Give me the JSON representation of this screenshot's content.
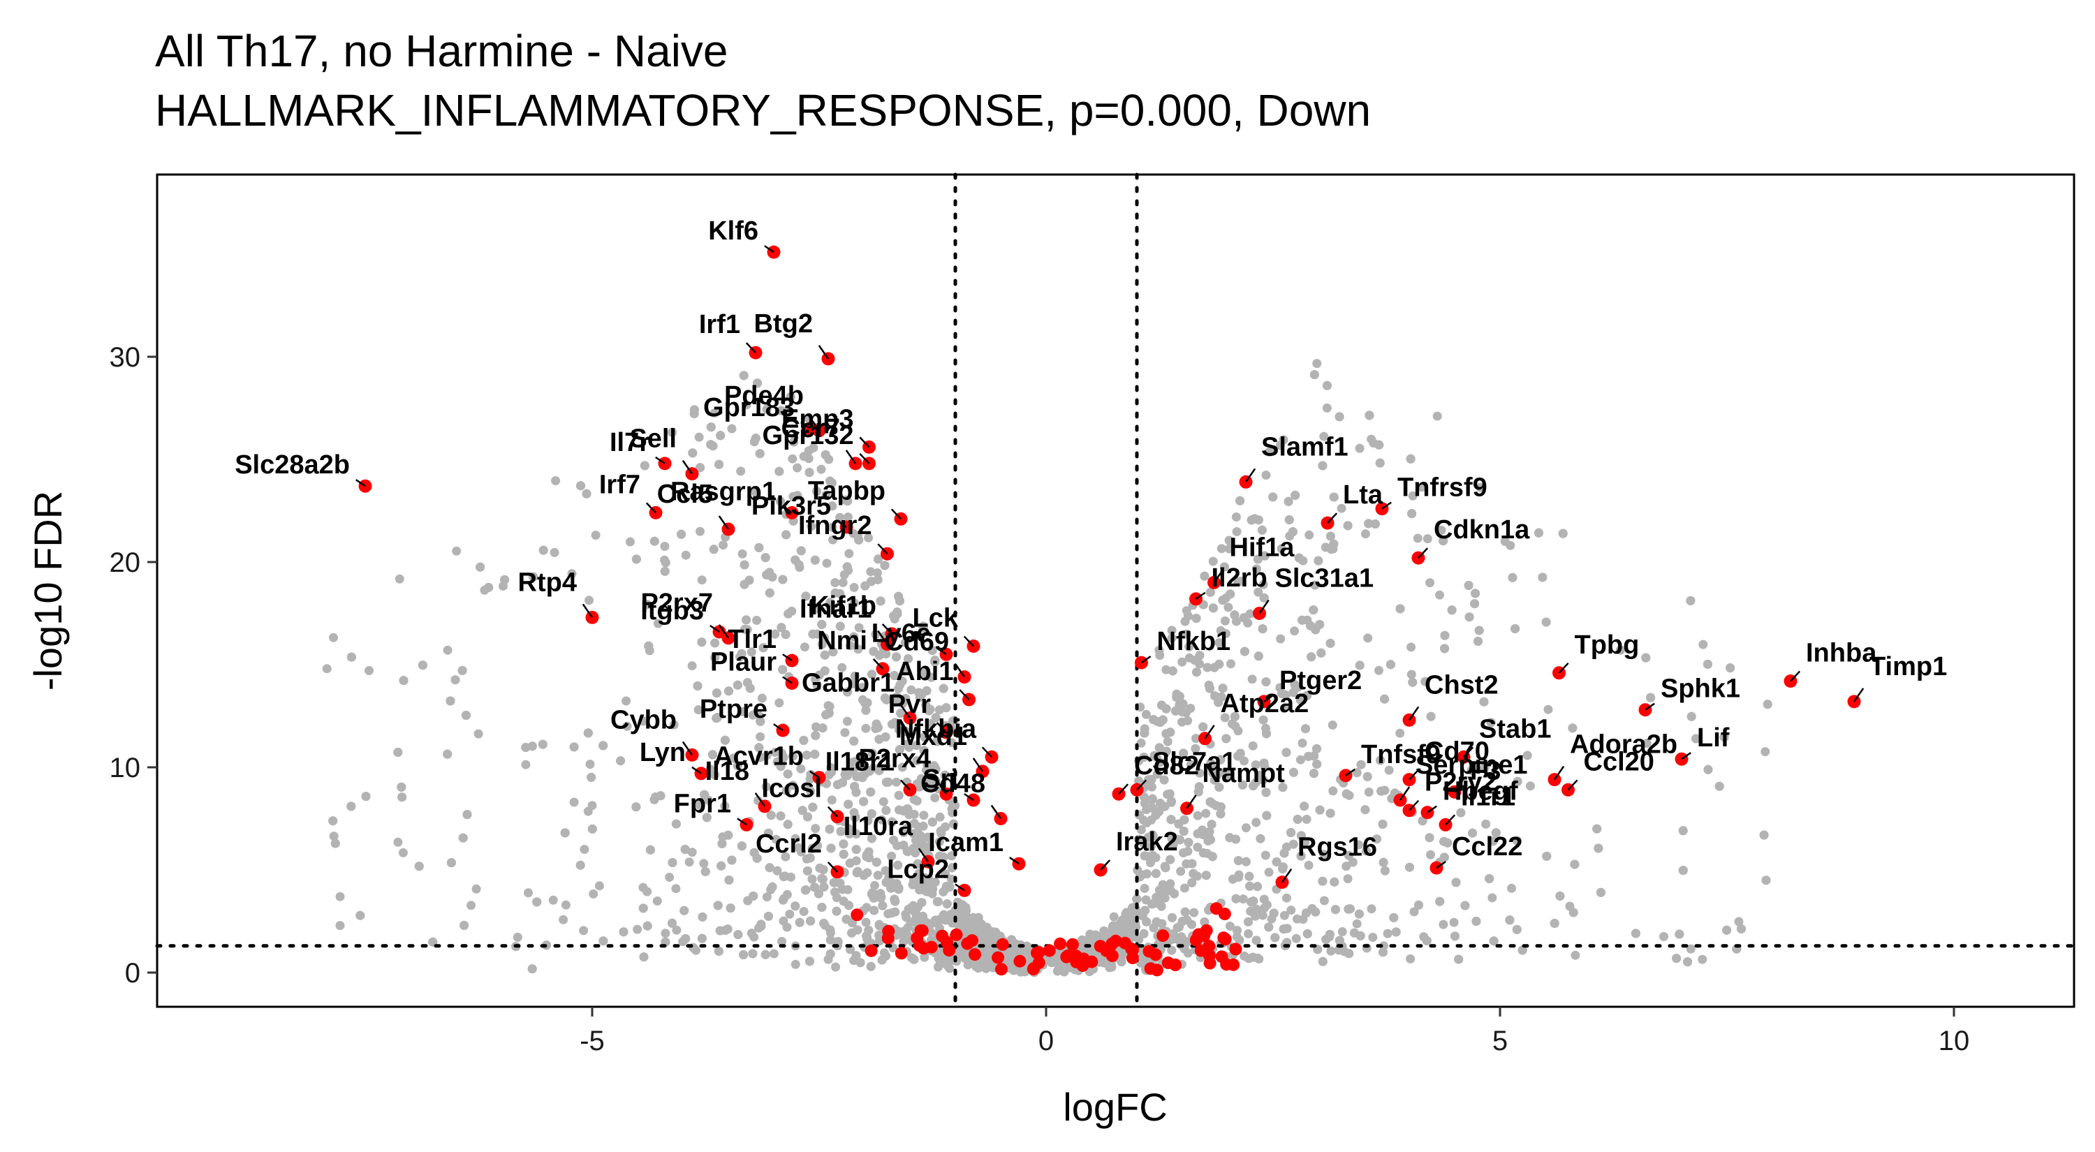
{
  "chart_data": {
    "type": "scatter",
    "title": "All Th17, no Harmine - Naive",
    "subtitle": "HALLMARK_INFLAMMATORY_RESPONSE, p=0.000, Down",
    "xlabel": "logFC",
    "ylabel": "-log10 FDR",
    "xlim": [
      -9.8,
      11.4
    ],
    "ylim": [
      -1.8,
      39.2
    ],
    "x_ticks": [
      -5,
      0,
      5,
      10
    ],
    "y_ticks": [
      0,
      10,
      20,
      30
    ],
    "x_tick_labels": [
      "-5",
      "0",
      "5",
      "10"
    ],
    "y_tick_labels": [
      "0",
      "10",
      "20",
      "30"
    ],
    "thresholds": {
      "logfc": [
        -1,
        1
      ],
      "neg_log10_fdr": 1.3
    },
    "grid": false,
    "colors": {
      "background_points": "#b3b3b3",
      "highlight_points": "#ff0000",
      "threshold_lines": "#000000"
    },
    "highlighted_genes": [
      {
        "gene": "Klf6",
        "x": -3.0,
        "y": 35.1
      },
      {
        "gene": "Irf1",
        "x": -3.2,
        "y": 30.2
      },
      {
        "gene": "Btg2",
        "x": -2.4,
        "y": 29.9
      },
      {
        "gene": "Gpr183",
        "x": -2.6,
        "y": 26.5
      },
      {
        "gene": "Emp3",
        "x": -1.95,
        "y": 25.6
      },
      {
        "gene": "Pde4b",
        "x": -2.5,
        "y": 26.4
      },
      {
        "gene": "Il7r",
        "x": -4.2,
        "y": 24.8
      },
      {
        "gene": "Gpr132",
        "x": -1.95,
        "y": 24.8
      },
      {
        "gene": "Ccr7",
        "x": -2.1,
        "y": 24.8
      },
      {
        "gene": "Slc28a2b",
        "x": -7.5,
        "y": 23.7
      },
      {
        "gene": "Irf7",
        "x": -4.3,
        "y": 22.4
      },
      {
        "gene": "Sell",
        "x": -3.9,
        "y": 24.3
      },
      {
        "gene": "Pik3r5",
        "x": -2.2,
        "y": 21.7
      },
      {
        "gene": "Tapbp",
        "x": -1.6,
        "y": 22.1
      },
      {
        "gene": "Ccl5",
        "x": -3.5,
        "y": 21.6
      },
      {
        "gene": "Rasgrp1",
        "x": -2.8,
        "y": 22.4
      },
      {
        "gene": "Ifngr2",
        "x": -1.75,
        "y": 20.4
      },
      {
        "gene": "Rtp4",
        "x": -5.0,
        "y": 17.3
      },
      {
        "gene": "Itgb3",
        "x": -3.6,
        "y": 16.6
      },
      {
        "gene": "Kif1b",
        "x": -1.7,
        "y": 16.5
      },
      {
        "gene": "Ifnar1",
        "x": -1.75,
        "y": 16.0
      },
      {
        "gene": "Ly6e",
        "x": -1.1,
        "y": 15.5
      },
      {
        "gene": "Lck",
        "x": -0.8,
        "y": 15.9
      },
      {
        "gene": "P2rx7",
        "x": -3.5,
        "y": 16.3
      },
      {
        "gene": "Tlr1",
        "x": -2.8,
        "y": 15.2
      },
      {
        "gene": "Nmi",
        "x": -1.8,
        "y": 14.8
      },
      {
        "gene": "Cd69",
        "x": -0.9,
        "y": 14.4
      },
      {
        "gene": "Plaur",
        "x": -2.8,
        "y": 14.1
      },
      {
        "gene": "Abi1",
        "x": -0.85,
        "y": 13.3
      },
      {
        "gene": "Gabbr1",
        "x": -1.5,
        "y": 12.4
      },
      {
        "gene": "Ptpre",
        "x": -2.9,
        "y": 11.8
      },
      {
        "gene": "Pvr",
        "x": -1.1,
        "y": 11.7
      },
      {
        "gene": "Cybb",
        "x": -3.9,
        "y": 10.6
      },
      {
        "gene": "Acvr1b",
        "x": -2.5,
        "y": 9.5
      },
      {
        "gene": "Nfkbia",
        "x": -0.6,
        "y": 10.5
      },
      {
        "gene": "Mxd1",
        "x": -0.7,
        "y": 9.8
      },
      {
        "gene": "Lyn",
        "x": -3.8,
        "y": 9.7
      },
      {
        "gene": "Il18r1",
        "x": -1.5,
        "y": 8.9
      },
      {
        "gene": "Il18",
        "x": -3.1,
        "y": 8.1
      },
      {
        "gene": "Sri",
        "x": -0.8,
        "y": 8.4
      },
      {
        "gene": "Cd82",
        "x": 0.8,
        "y": 8.7
      },
      {
        "gene": "P2rx4",
        "x": -1.1,
        "y": 8.7
      },
      {
        "gene": "Fpr1",
        "x": -3.3,
        "y": 7.2
      },
      {
        "gene": "Icosl",
        "x": -2.3,
        "y": 7.6
      },
      {
        "gene": "Cd48",
        "x": -0.5,
        "y": 7.5
      },
      {
        "gene": "Icam1",
        "x": -0.3,
        "y": 5.3
      },
      {
        "gene": "Ccrl2",
        "x": -2.3,
        "y": 4.9
      },
      {
        "gene": "Il10ra",
        "x": -1.3,
        "y": 5.4
      },
      {
        "gene": "Lcp2",
        "x": -0.9,
        "y": 4.0
      },
      {
        "gene": "Irak2",
        "x": 0.6,
        "y": 5.0
      },
      {
        "gene": "Slamf1",
        "x": 2.2,
        "y": 23.9
      },
      {
        "gene": "Tnfrsf9",
        "x": 3.7,
        "y": 22.6
      },
      {
        "gene": "Lta",
        "x": 3.1,
        "y": 21.9
      },
      {
        "gene": "Hif1a",
        "x": 1.85,
        "y": 19.0
      },
      {
        "gene": "Il2rb",
        "x": 1.65,
        "y": 18.2
      },
      {
        "gene": "Cdkn1a",
        "x": 4.1,
        "y": 20.2
      },
      {
        "gene": "Slc31a1",
        "x": 2.35,
        "y": 17.5
      },
      {
        "gene": "Nfkb1",
        "x": 1.05,
        "y": 15.1
      },
      {
        "gene": "Tpbg",
        "x": 5.65,
        "y": 14.6
      },
      {
        "gene": "Chst2",
        "x": 4.0,
        "y": 12.3
      },
      {
        "gene": "Ptger2",
        "x": 2.4,
        "y": 13.2
      },
      {
        "gene": "Inhba",
        "x": 8.2,
        "y": 14.2
      },
      {
        "gene": "Timp1",
        "x": 8.9,
        "y": 13.2
      },
      {
        "gene": "Sphk1",
        "x": 6.6,
        "y": 12.8
      },
      {
        "gene": "Stab1",
        "x": 4.6,
        "y": 10.5
      },
      {
        "gene": "Atp2a2",
        "x": 1.75,
        "y": 11.4
      },
      {
        "gene": "Tnfsf9",
        "x": 3.3,
        "y": 9.6
      },
      {
        "gene": "Cd70",
        "x": 4.0,
        "y": 9.4
      },
      {
        "gene": "Adora2b",
        "x": 5.6,
        "y": 9.4
      },
      {
        "gene": "Lif",
        "x": 7.0,
        "y": 10.4
      },
      {
        "gene": "Slc7a1",
        "x": 1.0,
        "y": 8.9
      },
      {
        "gene": "Serpine1",
        "x": 3.9,
        "y": 8.4
      },
      {
        "gene": "F3",
        "x": 4.5,
        "y": 8.8
      },
      {
        "gene": "Ccl20",
        "x": 5.75,
        "y": 8.9
      },
      {
        "gene": "Nampt",
        "x": 1.55,
        "y": 8.0
      },
      {
        "gene": "Hbegf",
        "x": 4.2,
        "y": 7.8
      },
      {
        "gene": "Il1r1",
        "x": 4.4,
        "y": 7.2
      },
      {
        "gene": "Rgs16",
        "x": 2.6,
        "y": 4.4
      },
      {
        "gene": "Ccl22",
        "x": 4.3,
        "y": 5.1
      },
      {
        "gene": "P2ry2",
        "x": 4.0,
        "y": 7.9
      }
    ]
  }
}
